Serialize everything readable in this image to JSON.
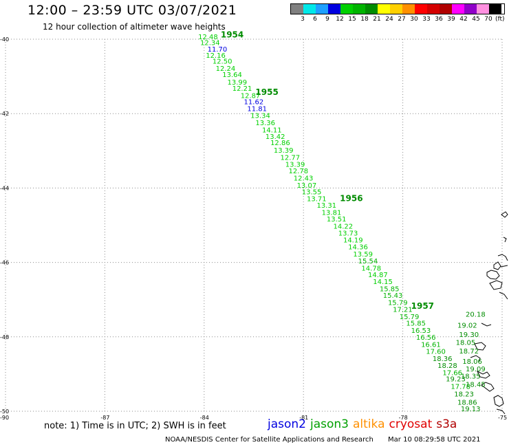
{
  "header": {
    "title": "12:00 – 23:59 UTC 03/07/2021",
    "subtitle": "12 hour collection of altimeter wave heights"
  },
  "legend": {
    "unit": "(ft)",
    "colors": [
      "#808080",
      "#00e8e8",
      "#1ea0ff",
      "#0000e0",
      "#00d000",
      "#00b400",
      "#008c00",
      "#ffff00",
      "#ffd000",
      "#ff9000",
      "#ff0000",
      "#d40000",
      "#b00000",
      "#ff00ff",
      "#9000c8",
      "#ff90e0",
      "#000000"
    ],
    "labels": [
      "3",
      "6",
      "9",
      "12",
      "15",
      "18",
      "21",
      "24",
      "27",
      "30",
      "33",
      "36",
      "39",
      "42",
      "45",
      "70"
    ]
  },
  "axes": {
    "lon_labels": [
      "-87",
      "-84",
      "-81",
      "-78",
      "-75"
    ],
    "lat_labels": [
      "-40",
      "-42",
      "-44",
      "-46",
      "-48",
      "-50"
    ],
    "lon_range": [
      -90,
      -75
    ],
    "lat_range": [
      -40,
      -50
    ],
    "corner_label": "-90"
  },
  "track": {
    "satellite": "jason3",
    "observations": [
      {
        "lon": -84.18,
        "lat": -40.0,
        "swh": "12.48"
      },
      {
        "lon": -84.12,
        "lat": -40.16,
        "swh": "12.34"
      },
      {
        "lon": -83.9,
        "lat": -40.33,
        "swh": "11.70"
      },
      {
        "lon": -83.95,
        "lat": -40.5,
        "swh": "12.16"
      },
      {
        "lon": -83.75,
        "lat": -40.66,
        "swh": "12.50"
      },
      {
        "lon": -83.65,
        "lat": -40.85,
        "swh": "12.24"
      },
      {
        "lon": -83.45,
        "lat": -41.02,
        "swh": "13.64"
      },
      {
        "lon": -83.3,
        "lat": -41.22,
        "swh": "13.99"
      },
      {
        "lon": -83.15,
        "lat": -41.39,
        "swh": "12.21"
      },
      {
        "lon": -82.9,
        "lat": -41.58,
        "swh": "12.87"
      },
      {
        "lon": -82.8,
        "lat": -41.75,
        "swh": "11.62"
      },
      {
        "lon": -82.7,
        "lat": -41.93,
        "swh": "11.81"
      },
      {
        "lon": -82.6,
        "lat": -42.12,
        "swh": "13.34"
      },
      {
        "lon": -82.45,
        "lat": -42.31,
        "swh": "13.36"
      },
      {
        "lon": -82.25,
        "lat": -42.5,
        "swh": "14.11"
      },
      {
        "lon": -82.15,
        "lat": -42.68,
        "swh": "13.42"
      },
      {
        "lon": -82.0,
        "lat": -42.85,
        "swh": "12.86"
      },
      {
        "lon": -81.9,
        "lat": -43.05,
        "swh": "13.39"
      },
      {
        "lon": -81.7,
        "lat": -43.24,
        "swh": "12.77"
      },
      {
        "lon": -81.55,
        "lat": -43.43,
        "swh": "13.39"
      },
      {
        "lon": -81.45,
        "lat": -43.6,
        "swh": "12.78"
      },
      {
        "lon": -81.3,
        "lat": -43.8,
        "swh": "12.43"
      },
      {
        "lon": -81.2,
        "lat": -43.99,
        "swh": "13.07"
      },
      {
        "lon": -81.05,
        "lat": -44.17,
        "swh": "13.55"
      },
      {
        "lon": -80.9,
        "lat": -44.35,
        "swh": "13.71"
      },
      {
        "lon": -80.6,
        "lat": -44.53,
        "swh": "13.31"
      },
      {
        "lon": -80.45,
        "lat": -44.72,
        "swh": "13.81"
      },
      {
        "lon": -80.3,
        "lat": -44.9,
        "swh": "13.51"
      },
      {
        "lon": -80.1,
        "lat": -45.09,
        "swh": "14.22"
      },
      {
        "lon": -79.95,
        "lat": -45.28,
        "swh": "13.73"
      },
      {
        "lon": -79.8,
        "lat": -45.46,
        "swh": "14.19"
      },
      {
        "lon": -79.65,
        "lat": -45.65,
        "swh": "14.36"
      },
      {
        "lon": -79.5,
        "lat": -45.84,
        "swh": "13.59"
      },
      {
        "lon": -79.35,
        "lat": -46.03,
        "swh": "15.54"
      },
      {
        "lon": -79.25,
        "lat": -46.22,
        "swh": "14.78"
      },
      {
        "lon": -79.05,
        "lat": -46.4,
        "swh": "14.87"
      },
      {
        "lon": -78.9,
        "lat": -46.58,
        "swh": "14.15"
      },
      {
        "lon": -78.7,
        "lat": -46.77,
        "swh": "15.85"
      },
      {
        "lon": -78.6,
        "lat": -46.95,
        "swh": "15.43"
      },
      {
        "lon": -78.45,
        "lat": -47.14,
        "swh": "15.79"
      },
      {
        "lon": -78.3,
        "lat": -47.33,
        "swh": "17.21"
      },
      {
        "lon": -78.1,
        "lat": -47.52,
        "swh": "15.79"
      },
      {
        "lon": -77.9,
        "lat": -47.7,
        "swh": "15.85"
      },
      {
        "lon": -77.75,
        "lat": -47.89,
        "swh": "16.53"
      },
      {
        "lon": -77.6,
        "lat": -48.08,
        "swh": "16.56"
      },
      {
        "lon": -77.45,
        "lat": -48.27,
        "swh": "16.61"
      },
      {
        "lon": -77.3,
        "lat": -48.46,
        "swh": "17.60"
      },
      {
        "lon": -77.1,
        "lat": -48.65,
        "swh": "18.36"
      },
      {
        "lon": -76.95,
        "lat": -48.84,
        "swh": "18.28"
      },
      {
        "lon": -76.8,
        "lat": -49.03,
        "swh": "17.66"
      },
      {
        "lon": -76.7,
        "lat": -49.2,
        "swh": "19.23"
      },
      {
        "lon": -76.55,
        "lat": -49.4,
        "swh": "17.78"
      },
      {
        "lon": -76.45,
        "lat": -49.6,
        "swh": "18.23"
      },
      {
        "lon": -76.35,
        "lat": -49.82,
        "swh": "18.86"
      },
      {
        "lon": -76.25,
        "lat": -50.0,
        "swh": "19.13"
      },
      {
        "lon": -76.1,
        "lat": -47.46,
        "swh": "20.18"
      },
      {
        "lon": -76.35,
        "lat": -47.75,
        "swh": "19.02"
      },
      {
        "lon": -76.3,
        "lat": -48.0,
        "swh": "19.30"
      },
      {
        "lon": -76.4,
        "lat": -48.22,
        "swh": "18.05"
      },
      {
        "lon": -76.3,
        "lat": -48.45,
        "swh": "18.72"
      },
      {
        "lon": -76.2,
        "lat": -48.72,
        "swh": "18.06"
      },
      {
        "lon": -76.1,
        "lat": -48.93,
        "swh": "19.09"
      },
      {
        "lon": -76.25,
        "lat": -49.12,
        "swh": "18.35"
      },
      {
        "lon": -76.1,
        "lat": -49.34,
        "swh": "18.45"
      }
    ],
    "time_labels": [
      {
        "lon": -83.5,
        "lat": -39.95,
        "text": "1954"
      },
      {
        "lon": -82.45,
        "lat": -41.5,
        "text": "1955"
      },
      {
        "lon": -79.9,
        "lat": -44.35,
        "text": "1956"
      },
      {
        "lon": -77.75,
        "lat": -47.25,
        "text": "1957"
      }
    ]
  },
  "note": "note: 1) Time is in UTC; 2) SWH is in feet",
  "satellites": [
    {
      "name": "jason2",
      "color": "#0000e0"
    },
    {
      "name": "jason3",
      "color": "#00a000"
    },
    {
      "name": "altika",
      "color": "#ff9000"
    },
    {
      "name": "cryosat",
      "color": "#e00000"
    },
    {
      "name": "s3a",
      "color": "#b00000"
    }
  ],
  "footer": {
    "source": "NOAA/NESDIS Center for Satellite Applications and Research",
    "timestamp": "Mar 10 08:29:58 UTC 2021"
  }
}
